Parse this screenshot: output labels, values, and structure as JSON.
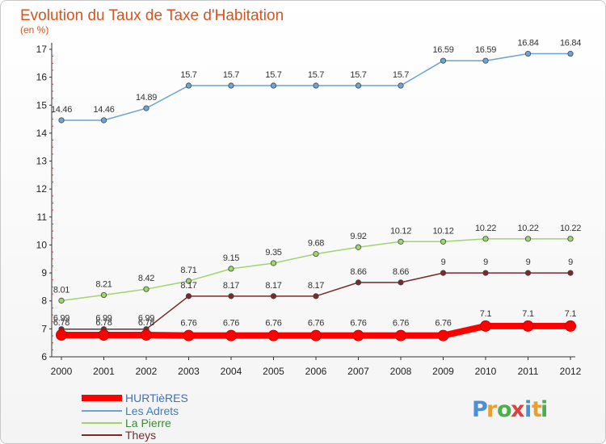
{
  "chart_data": {
    "type": "line",
    "title": "Evolution du Taux de Taxe d'Habitation",
    "subtitle": "(en %)",
    "xlabel": "",
    "ylabel": "",
    "x": [
      "2000",
      "2001",
      "2002",
      "2003",
      "2004",
      "2005",
      "2006",
      "2007",
      "2008",
      "2009",
      "2010",
      "2011",
      "2012"
    ],
    "yticks": [
      "6",
      "7",
      "8",
      "9",
      "10",
      "11",
      "12",
      "13",
      "14",
      "15",
      "16",
      "17"
    ],
    "ylim": [
      6,
      17
    ],
    "grid": false,
    "legend": "bottom-left",
    "series": [
      {
        "name": "HURTièRES",
        "color": "#ff0000",
        "values": [
          6.78,
          6.78,
          6.78,
          6.76,
          6.76,
          6.76,
          6.76,
          6.76,
          6.76,
          6.76,
          7.1,
          7.1,
          7.1
        ],
        "labels": [
          "6.78",
          "6.78",
          "6.78",
          "6.76",
          "6.76",
          "6.76",
          "6.76",
          "6.76",
          "6.76",
          "6.76",
          "7.1",
          "7.1",
          "7.1"
        ]
      },
      {
        "name": "Les Adrets",
        "color": "#6aa4d8",
        "values": [
          14.46,
          14.46,
          14.89,
          15.7,
          15.7,
          15.7,
          15.7,
          15.7,
          15.7,
          16.59,
          16.59,
          16.84,
          16.84
        ],
        "labels": [
          "14.46",
          "14.46",
          "14.89",
          "15.7",
          "15.7",
          "15.7",
          "15.7",
          "15.7",
          "15.7",
          "16.59",
          "16.59",
          "16.84",
          "16.84"
        ]
      },
      {
        "name": "La Pierre",
        "color": "#9ed66c",
        "values": [
          8.01,
          8.21,
          8.42,
          8.71,
          9.15,
          9.35,
          9.68,
          9.92,
          10.12,
          10.12,
          10.22,
          10.22,
          10.22
        ],
        "labels": [
          "8.01",
          "8.21",
          "8.42",
          "8.71",
          "9.15",
          "9.35",
          "9.68",
          "9.92",
          "10.12",
          "10.12",
          "10.22",
          "10.22",
          "10.22"
        ]
      },
      {
        "name": "Theys",
        "color": "#7a2a2a",
        "values": [
          6.99,
          6.99,
          6.99,
          8.17,
          8.17,
          8.17,
          8.17,
          8.66,
          8.66,
          9,
          9,
          9,
          9
        ],
        "labels": [
          "6.99",
          "6.99",
          "6.99",
          "8.17",
          "8.17",
          "8.17",
          "8.17",
          "8.66",
          "8.66",
          "9",
          "9",
          "9",
          "9"
        ]
      }
    ]
  },
  "logo": {
    "letters": [
      "P",
      "r",
      "o",
      "x",
      "i",
      "t",
      "i"
    ],
    "colors": [
      "#4a90d9",
      "#e8a030",
      "#4ab04a",
      "#e04040",
      "#4a90d9",
      "#e8a030",
      "#4ab04a"
    ]
  }
}
